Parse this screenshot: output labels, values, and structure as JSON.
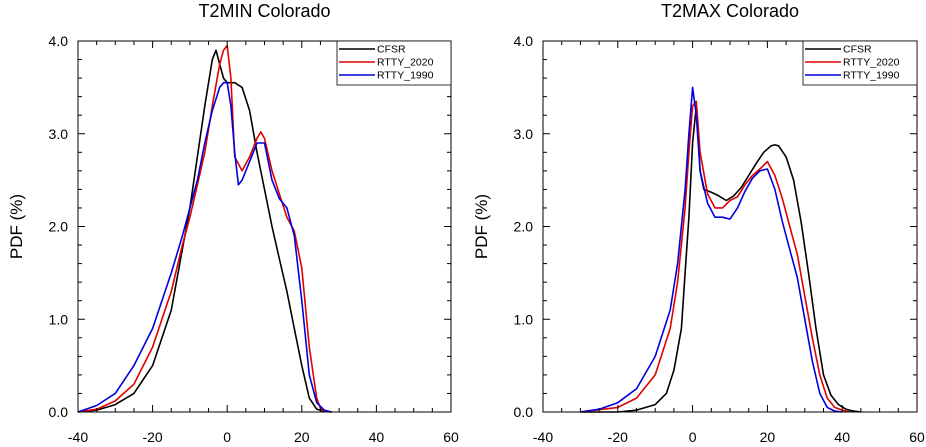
{
  "chart_data": [
    {
      "type": "line",
      "title": "T2MIN Colorado",
      "xlabel": "",
      "ylabel": "PDF (%)",
      "xlim": [
        -40,
        60
      ],
      "ylim": [
        0,
        4
      ],
      "xticks": [
        -40,
        -20,
        0,
        20,
        40,
        60
      ],
      "yticks": [
        0,
        1,
        2,
        3,
        4
      ],
      "xtick_labels": [
        "-40",
        "-20",
        "0",
        "20",
        "40",
        "60"
      ],
      "ytick_labels": [
        "0.0",
        "1.0",
        "2.0",
        "3.0",
        "4.0"
      ],
      "grid": false,
      "legend_position": "top-right",
      "series": [
        {
          "name": "CFSR",
          "color": "#000000",
          "x": [
            -40,
            -35,
            -30,
            -25,
            -20,
            -15,
            -10,
            -6,
            -4,
            -3,
            -2,
            -1,
            0,
            2,
            4,
            6,
            8,
            10,
            12,
            14,
            16,
            18,
            20,
            22,
            24,
            26,
            28
          ],
          "y": [
            0.0,
            0.02,
            0.08,
            0.2,
            0.5,
            1.1,
            2.2,
            3.3,
            3.8,
            3.9,
            3.75,
            3.6,
            3.55,
            3.55,
            3.5,
            3.25,
            2.8,
            2.4,
            2.0,
            1.65,
            1.3,
            0.9,
            0.5,
            0.15,
            0.03,
            0.01,
            0.0
          ]
        },
        {
          "name": "RTTY_2020",
          "color": "#e00000",
          "x": [
            -40,
            -35,
            -30,
            -25,
            -20,
            -15,
            -12,
            -10,
            -8,
            -6,
            -4,
            -2,
            -1,
            0,
            1,
            2,
            4,
            6,
            8,
            9,
            10,
            12,
            14,
            16,
            18,
            20,
            22,
            24,
            25,
            26,
            28
          ],
          "y": [
            0.0,
            0.03,
            0.12,
            0.3,
            0.7,
            1.3,
            1.8,
            2.1,
            2.45,
            2.8,
            3.3,
            3.75,
            3.9,
            3.95,
            3.6,
            2.75,
            2.6,
            2.75,
            2.95,
            3.02,
            2.95,
            2.6,
            2.35,
            2.1,
            1.95,
            1.55,
            0.7,
            0.15,
            0.04,
            0.01,
            0.0
          ]
        },
        {
          "name": "RTTY_1990",
          "color": "#0000e0",
          "x": [
            -40,
            -35,
            -30,
            -25,
            -20,
            -15,
            -12,
            -10,
            -8,
            -6,
            -4,
            -2,
            -1,
            0,
            1,
            2,
            3,
            4,
            6,
            8,
            10,
            12,
            14,
            16,
            18,
            20,
            22,
            24,
            26,
            28
          ],
          "y": [
            0.0,
            0.07,
            0.2,
            0.5,
            0.9,
            1.5,
            1.9,
            2.2,
            2.5,
            2.9,
            3.25,
            3.5,
            3.55,
            3.55,
            3.3,
            2.8,
            2.45,
            2.5,
            2.7,
            2.9,
            2.9,
            2.5,
            2.3,
            2.2,
            1.9,
            1.2,
            0.4,
            0.1,
            0.02,
            0.0
          ]
        }
      ]
    },
    {
      "type": "line",
      "title": "T2MAX Colorado",
      "xlabel": "",
      "ylabel": "PDF (%)",
      "xlim": [
        -40,
        60
      ],
      "ylim": [
        0,
        4
      ],
      "xticks": [
        -40,
        -20,
        0,
        20,
        40,
        60
      ],
      "yticks": [
        0,
        1,
        2,
        3,
        4
      ],
      "xtick_labels": [
        "-40",
        "-20",
        "0",
        "20",
        "40",
        "60"
      ],
      "ytick_labels": [
        "0.0",
        "1.0",
        "2.0",
        "3.0",
        "4.0"
      ],
      "grid": false,
      "legend_position": "top-right",
      "series": [
        {
          "name": "CFSR",
          "color": "#000000",
          "x": [
            -30,
            -20,
            -15,
            -10,
            -7,
            -5,
            -3,
            -2,
            -1,
            0,
            1,
            2,
            3,
            5,
            7,
            9,
            11,
            13,
            15,
            17,
            19,
            21,
            22,
            23,
            25,
            27,
            29,
            31,
            33,
            35,
            37,
            39,
            41,
            43,
            45
          ],
          "y": [
            0.0,
            0.0,
            0.02,
            0.08,
            0.2,
            0.45,
            0.9,
            1.5,
            2.1,
            2.9,
            3.3,
            2.6,
            2.4,
            2.37,
            2.33,
            2.28,
            2.33,
            2.42,
            2.55,
            2.68,
            2.8,
            2.87,
            2.88,
            2.87,
            2.75,
            2.5,
            2.05,
            1.5,
            0.9,
            0.4,
            0.18,
            0.08,
            0.03,
            0.01,
            0.0
          ]
        },
        {
          "name": "RTTY_2020",
          "color": "#e00000",
          "x": [
            -30,
            -20,
            -15,
            -10,
            -6,
            -4,
            -2,
            -1,
            0,
            1,
            2,
            4,
            6,
            8,
            10,
            12,
            14,
            16,
            18,
            20,
            22,
            24,
            26,
            28,
            30,
            32,
            34,
            36,
            38,
            40,
            42
          ],
          "y": [
            0.0,
            0.05,
            0.15,
            0.4,
            0.9,
            1.4,
            2.2,
            2.8,
            3.3,
            3.35,
            2.8,
            2.35,
            2.2,
            2.2,
            2.28,
            2.32,
            2.45,
            2.55,
            2.62,
            2.7,
            2.55,
            2.3,
            2.0,
            1.7,
            1.25,
            0.8,
            0.4,
            0.15,
            0.05,
            0.02,
            0.0
          ]
        },
        {
          "name": "RTTY_1990",
          "color": "#0000e0",
          "x": [
            -30,
            -25,
            -20,
            -15,
            -10,
            -6,
            -4,
            -2,
            -1,
            0,
            1,
            2,
            4,
            6,
            8,
            10,
            12,
            14,
            16,
            18,
            20,
            22,
            24,
            26,
            28,
            30,
            32,
            34,
            36,
            38,
            40
          ],
          "y": [
            0.0,
            0.03,
            0.1,
            0.25,
            0.6,
            1.1,
            1.6,
            2.4,
            3.0,
            3.5,
            3.2,
            2.6,
            2.25,
            2.1,
            2.1,
            2.08,
            2.2,
            2.38,
            2.52,
            2.6,
            2.62,
            2.4,
            2.05,
            1.75,
            1.45,
            1.0,
            0.55,
            0.2,
            0.05,
            0.01,
            0.0
          ]
        }
      ]
    }
  ]
}
